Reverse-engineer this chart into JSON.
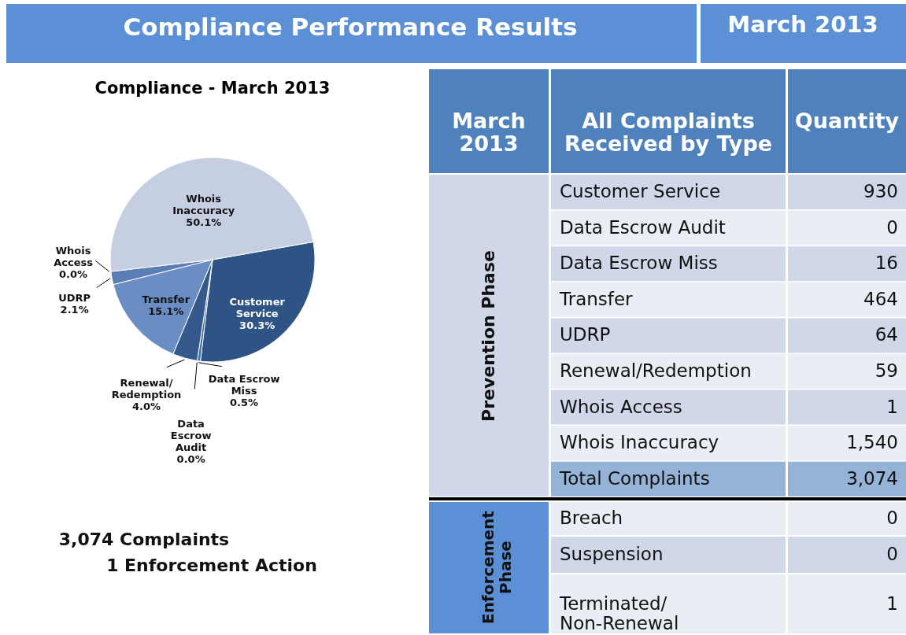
{
  "chart_data": [
    {
      "type": "pie",
      "title": "Compliance - March 2013",
      "categories": [
        "Customer\nService",
        "Data Escrow\nMiss",
        "Data\nEscrow\nAudit",
        "Renewal/\nRedemption",
        "Transfer",
        "UDRP",
        "Whois\nAccess",
        "Whois\nInaccuracy"
      ],
      "values": [
        30.3,
        0.5,
        0.0,
        4.0,
        15.1,
        2.1,
        0.0,
        50.1
      ],
      "colors": [
        "#2e5385",
        "#3f6eb0",
        "#3a64a0",
        "#35598c",
        "#6a8dc4",
        "#5a7db3",
        "#9fb4d8",
        "#c6cfe2"
      ],
      "value_labels": [
        "30.3%",
        "0.5%",
        "0.0%",
        "4.0%",
        "15.1%",
        "2.1%",
        "0.0%",
        "50.1%"
      ],
      "annotations": [
        "3,074 Complaints",
        "1 Enforcement Action"
      ]
    },
    {
      "type": "other",
      "title": "Compliance Performance Results",
      "subtitle": "March 2013",
      "categories": [
        "Customer Service",
        "Data Escrow Audit",
        "Data Escrow Miss",
        "Transfer",
        "UDRP",
        "Renewal/Redemption",
        "Whois Access",
        "Whois Inaccuracy",
        "Total Complaints",
        "Breach",
        "Suspension",
        "Terminated/\nNon-Renewal"
      ],
      "values": [
        930,
        0,
        16,
        464,
        64,
        59,
        1,
        1540,
        3074,
        0,
        0,
        1
      ],
      "value_labels": [
        "930",
        "0",
        "16",
        "464",
        "64",
        "59",
        "1",
        "1,540",
        "3,074",
        "0",
        "0",
        "1"
      ],
      "annotations": [
        "March\n2013",
        "All Complaints\nReceived by Type",
        "Quantity",
        "Prevention Phase",
        "Enforcement\nPhase"
      ]
    }
  ]
}
